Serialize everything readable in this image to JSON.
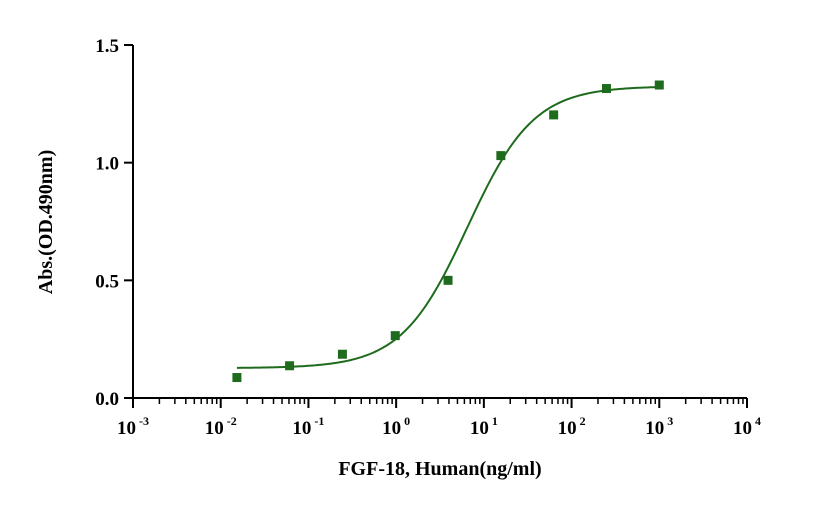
{
  "chart_data": {
    "type": "scatter",
    "xlabel": "FGF-18, Human(ng/ml)",
    "ylabel": "Abs.(OD.490nm)",
    "x_scale": "log",
    "xlim": [
      0.001,
      10000
    ],
    "ylim": [
      0,
      1.5
    ],
    "y_ticks": [
      "0.0",
      "0.5",
      "1.0",
      "1.5"
    ],
    "x_ticks": [
      {
        "base": "10",
        "exp": "-3"
      },
      {
        "base": "10",
        "exp": "-2"
      },
      {
        "base": "10",
        "exp": "-1"
      },
      {
        "base": "10",
        "exp": "0"
      },
      {
        "base": "10",
        "exp": "1"
      },
      {
        "base": "10",
        "exp": "2"
      },
      {
        "base": "10",
        "exp": "3"
      },
      {
        "base": "10",
        "exp": "4"
      }
    ],
    "series": [
      {
        "x": [
          0.0153,
          0.061,
          0.244,
          0.977,
          3.906,
          15.625,
          62.5,
          250,
          1000
        ],
        "y": [
          0.087,
          0.137,
          0.186,
          0.265,
          0.5,
          1.03,
          1.203,
          1.315,
          1.33
        ]
      }
    ],
    "fit": {
      "bottom": 0.127,
      "top": 1.325,
      "ec50": 6.5,
      "hill": 1.15,
      "x_range": [
        0.0153,
        1000
      ]
    },
    "grid": false,
    "legend": "none",
    "colors": {
      "series": "#1e6b1e",
      "axis": "#000000"
    }
  }
}
